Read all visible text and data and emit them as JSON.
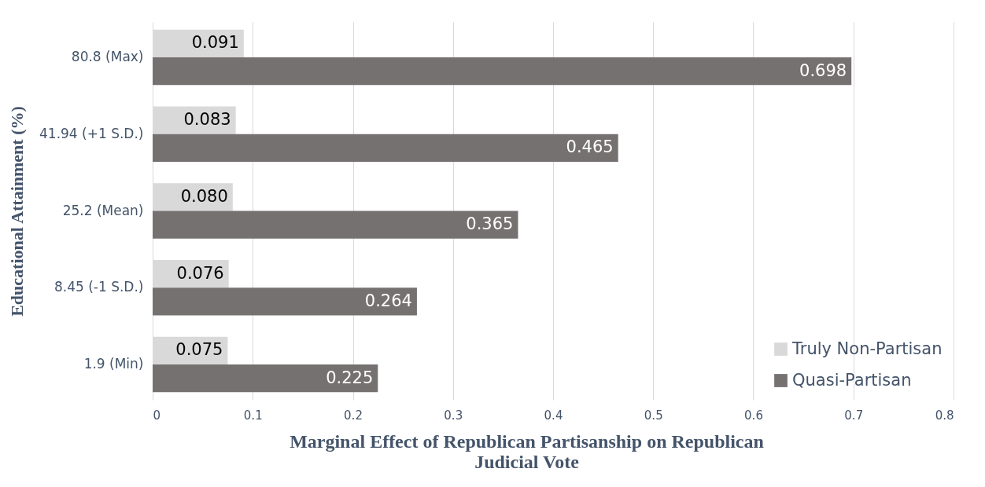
{
  "chart_data": {
    "type": "bar",
    "orientation": "horizontal",
    "xlabel": "Marginal Effect of Republican Partisanship on Republican Judicial Vote",
    "ylabel": "Educational Attainment (%)",
    "categories": [
      "80.8 (Max)",
      "41.94 (+1 S.D.)",
      "25.2 (Mean)",
      "8.45 (-1 S.D.)",
      "1.9 (Min)"
    ],
    "series": [
      {
        "name": "Truly Non-Partisan",
        "color": "#d9d9d9",
        "values": [
          0.091,
          0.083,
          0.08,
          0.076,
          0.075
        ],
        "value_labels": [
          "0.091",
          "0.083",
          "0.080",
          "0.076",
          "0.075"
        ]
      },
      {
        "name": "Quasi-Partisan",
        "color": "#767171",
        "values": [
          0.698,
          0.465,
          0.365,
          0.264,
          0.225
        ],
        "value_labels": [
          "0.698",
          "0.465",
          "0.365",
          "0.264",
          "0.225"
        ]
      }
    ],
    "xlim": [
      0,
      0.8
    ],
    "xticks": [
      0,
      0.1,
      0.2,
      0.3,
      0.4,
      0.5,
      0.6,
      0.7,
      0.8
    ],
    "grid": "x",
    "legend": "bottom right"
  }
}
